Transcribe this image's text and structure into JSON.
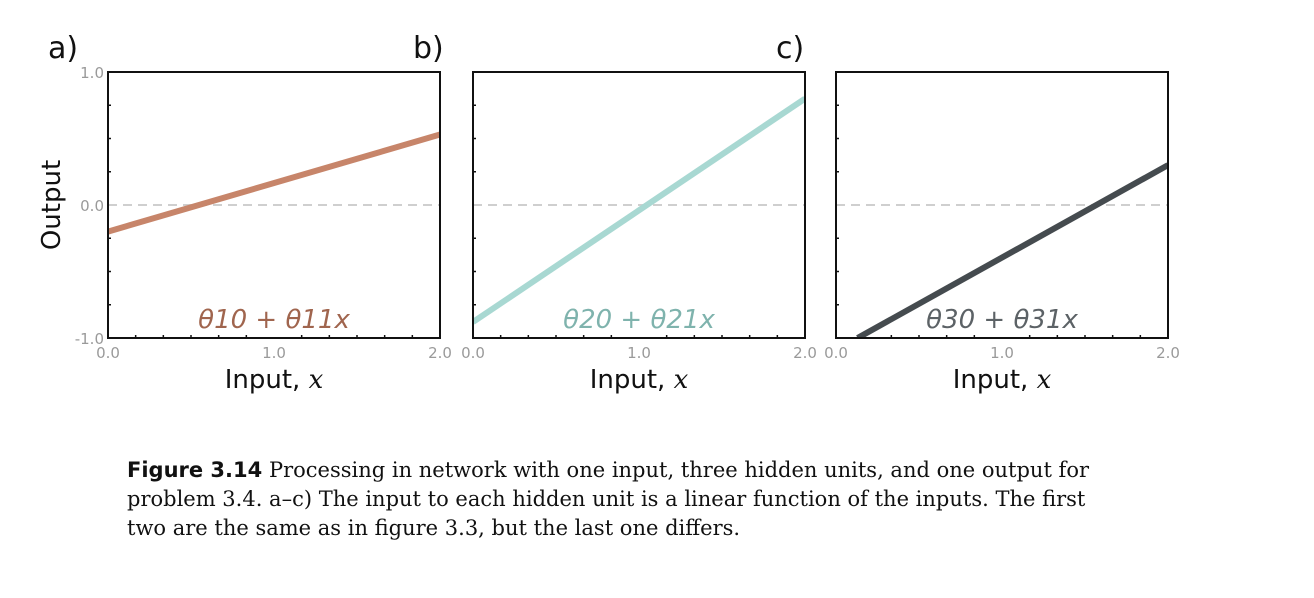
{
  "chart_data": [
    {
      "type": "line",
      "panel": "a)",
      "xlabel": "Input,",
      "xlabel_var": "x",
      "ylabel": "Output",
      "xlim": [
        0,
        2
      ],
      "ylim": [
        -1,
        1
      ],
      "x_ticks": [
        "0.0",
        "1.0",
        "2.0"
      ],
      "y_ticks": [
        "-1.0",
        "0.0",
        "1.0"
      ],
      "zero_line": true,
      "annotation": "θ10 + θ11x",
      "series": [
        {
          "color": "#c7856a",
          "x": [
            0,
            2
          ],
          "y": [
            -0.2,
            0.53
          ]
        }
      ]
    },
    {
      "type": "line",
      "panel": "b)",
      "xlabel": "Input,",
      "xlabel_var": "x",
      "xlim": [
        0,
        2
      ],
      "ylim": [
        -1,
        1
      ],
      "x_ticks": [
        "0.0",
        "1.0",
        "2.0"
      ],
      "zero_line": true,
      "annotation": "θ20 + θ21x",
      "series": [
        {
          "color": "#a8d8d2",
          "x": [
            0,
            2
          ],
          "y": [
            -0.88,
            0.8
          ]
        }
      ]
    },
    {
      "type": "line",
      "panel": "c)",
      "xlabel": "Input,",
      "xlabel_var": "x",
      "xlim": [
        0,
        2
      ],
      "ylim": [
        -1,
        1
      ],
      "x_ticks": [
        "0.0",
        "1.0",
        "2.0"
      ],
      "zero_line": true,
      "annotation": "θ30 + θ31x",
      "series": [
        {
          "color": "#454b4f",
          "x": [
            0.13,
            2
          ],
          "y": [
            -1.0,
            0.3
          ]
        }
      ]
    }
  ],
  "caption": {
    "label": "Figure 3.14",
    "text": "Processing in network with one input, three hidden units, and one output for problem 3.4. a–c) The input to each hidden unit is a linear function of the inputs. The first two are the same as in figure 3.3, but the last one differs."
  }
}
